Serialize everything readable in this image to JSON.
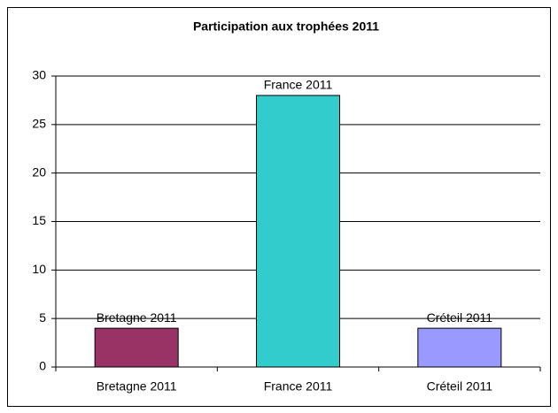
{
  "chart_data": {
    "type": "bar",
    "title": "Participation aux trophées 2011",
    "categories": [
      "Bretagne 2011",
      "France 2011",
      "Créteil 2011"
    ],
    "values": [
      4,
      28,
      4
    ],
    "colors": [
      "#993366",
      "#33CCCC",
      "#9999FF"
    ],
    "ylim": [
      0,
      30
    ],
    "yticks": [
      0,
      5,
      10,
      15,
      20,
      25,
      30
    ],
    "grid": true
  }
}
